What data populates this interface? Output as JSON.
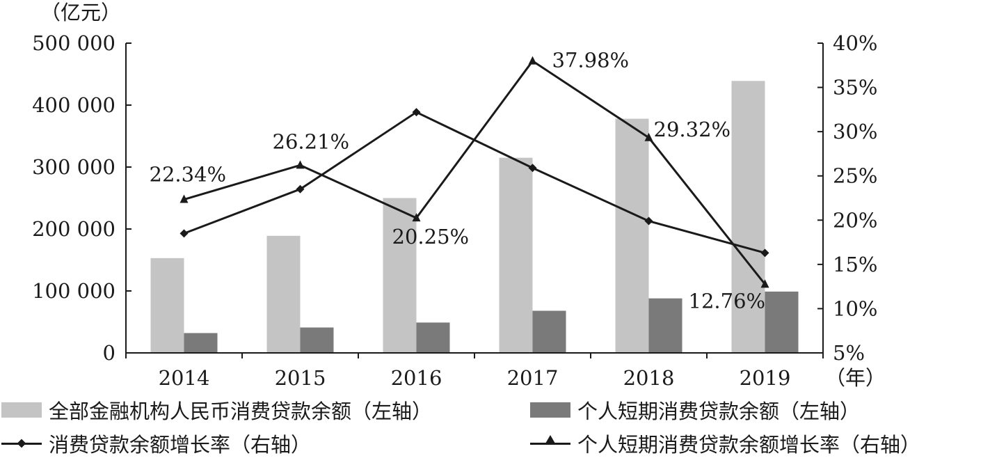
{
  "chart_data": {
    "type": "bar",
    "categories": [
      "2014",
      "2015",
      "2016",
      "2017",
      "2018",
      "2019"
    ],
    "y_left_unit": "（亿元）",
    "x_unit": "（年）",
    "y_left_ticks": [
      "0",
      "100 000",
      "200 000",
      "300 000",
      "400 000",
      "500 000"
    ],
    "y_right_ticks": [
      "5%",
      "10%",
      "15%",
      "20%",
      "25%",
      "30%",
      "35%",
      "40%"
    ],
    "ylim_left": [
      0,
      500000
    ],
    "ylim_right": [
      5,
      40
    ],
    "grid": false,
    "legend_position": "bottom",
    "bar_series": [
      {
        "name": "全部金融机构人民币消费贷款余额（左轴）",
        "color": "#c4c4c4",
        "values": [
          153000,
          189000,
          250000,
          315000,
          378000,
          439000
        ]
      },
      {
        "name": "个人短期消费贷款余额（左轴）",
        "color": "#7a7a7a",
        "values": [
          32000,
          41000,
          49000,
          68000,
          88000,
          99000
        ]
      }
    ],
    "line_series": [
      {
        "name": "消费贷款余额增长率（右轴）",
        "marker": "diamond",
        "values": [
          18.5,
          23.5,
          32.2,
          25.9,
          19.9,
          16.3
        ],
        "data_labels": [
          "",
          "",
          "",
          "",
          "",
          ""
        ]
      },
      {
        "name": "个人短期消费贷款余额增长率（右轴）",
        "marker": "triangle",
        "values": [
          22.34,
          26.21,
          20.25,
          37.98,
          29.32,
          12.76
        ],
        "data_labels": [
          "22.34%",
          "26.21%",
          "20.25%",
          "37.98%",
          "29.32%",
          "12.76%"
        ]
      }
    ]
  },
  "legend": {
    "items": [
      {
        "label": "全部金融机构人民币消费贷款余额（左轴）",
        "kind": "bar",
        "color": "#c4c4c4"
      },
      {
        "label": "个人短期消费贷款余额（左轴）",
        "kind": "bar",
        "color": "#7a7a7a"
      },
      {
        "label": "消费贷款余额增长率（右轴）",
        "kind": "line",
        "marker": "diamond"
      },
      {
        "label": "个人短期消费贷款余额增长率（右轴）",
        "kind": "line",
        "marker": "triangle"
      }
    ]
  }
}
